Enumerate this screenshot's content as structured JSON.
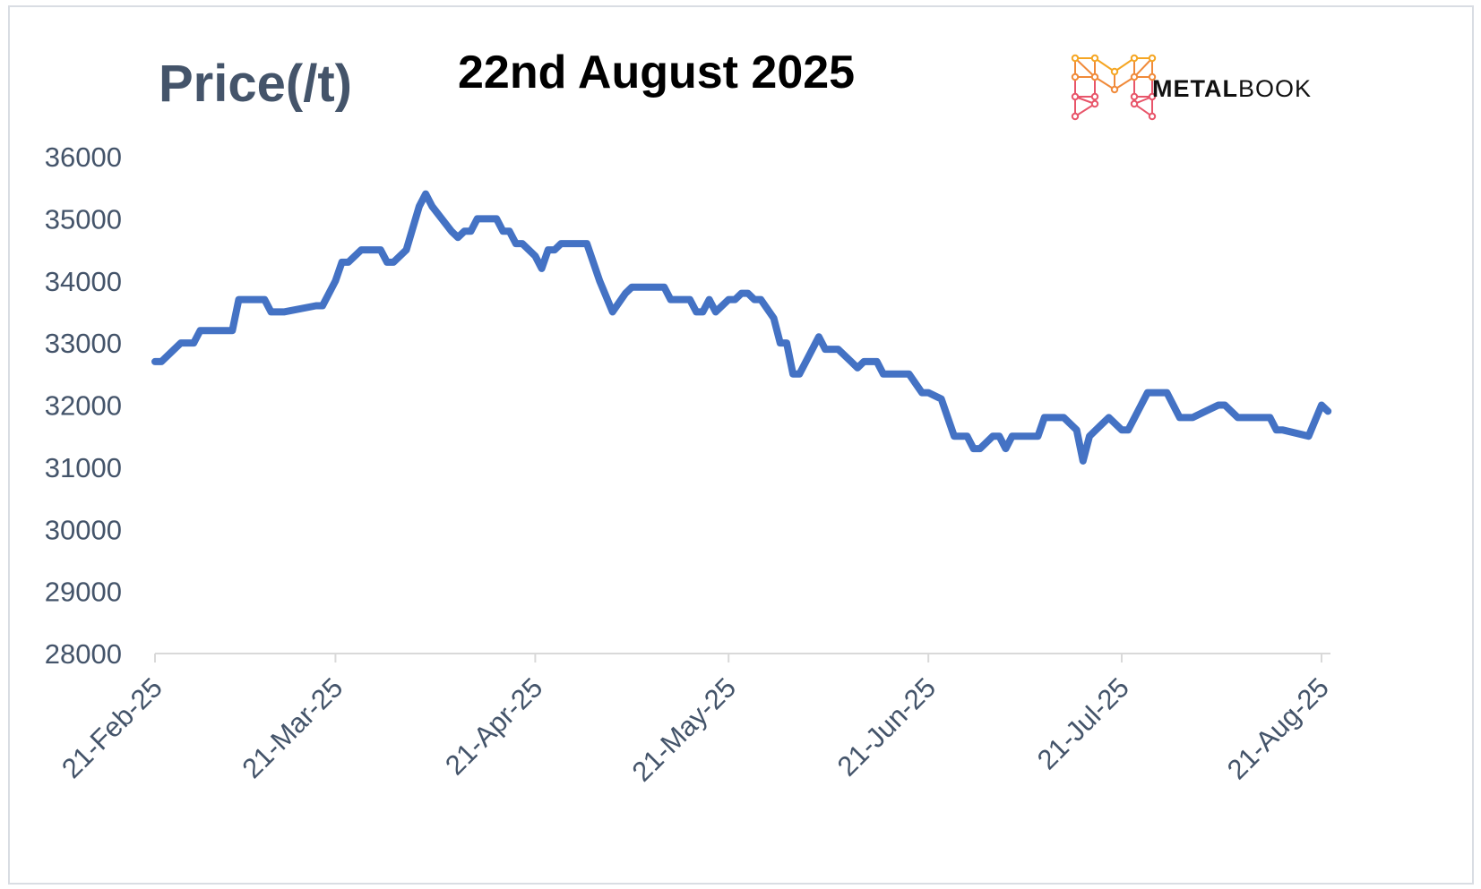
{
  "chart_data": {
    "type": "line",
    "title": "22nd August 2025",
    "ylabel": "Price(/t)",
    "xlabel": "",
    "ylim": [
      28000,
      36000
    ],
    "yticks": [
      28000,
      29000,
      30000,
      31000,
      32000,
      33000,
      34000,
      35000,
      36000
    ],
    "xlim": [
      "2025-02-21",
      "2025-08-22"
    ],
    "xticks": [
      {
        "date": "2025-02-21",
        "label": "21-Feb-25"
      },
      {
        "date": "2025-03-21",
        "label": "21-Mar-25"
      },
      {
        "date": "2025-04-21",
        "label": "21-Apr-25"
      },
      {
        "date": "2025-05-21",
        "label": "21-May-25"
      },
      {
        "date": "2025-06-21",
        "label": "21-Jun-25"
      },
      {
        "date": "2025-07-21",
        "label": "21-Jul-25"
      },
      {
        "date": "2025-08-21",
        "label": "21-Aug-25"
      }
    ],
    "grid": false,
    "legend": "none",
    "series": [
      {
        "color": "#4472c4",
        "points": [
          [
            "2025-02-21",
            32700
          ],
          [
            "2025-02-22",
            32700
          ],
          [
            "2025-02-25",
            33000
          ],
          [
            "2025-02-27",
            33000
          ],
          [
            "2025-02-28",
            33200
          ],
          [
            "2025-03-05",
            33200
          ],
          [
            "2025-03-06",
            33700
          ],
          [
            "2025-03-10",
            33700
          ],
          [
            "2025-03-11",
            33500
          ],
          [
            "2025-03-13",
            33500
          ],
          [
            "2025-03-18",
            33600
          ],
          [
            "2025-03-19",
            33600
          ],
          [
            "2025-03-21",
            34000
          ],
          [
            "2025-03-22",
            34300
          ],
          [
            "2025-03-23",
            34300
          ],
          [
            "2025-03-25",
            34500
          ],
          [
            "2025-03-28",
            34500
          ],
          [
            "2025-03-29",
            34300
          ],
          [
            "2025-03-30",
            34300
          ],
          [
            "2025-04-01",
            34500
          ],
          [
            "2025-04-03",
            35200
          ],
          [
            "2025-04-04",
            35400
          ],
          [
            "2025-04-05",
            35200
          ],
          [
            "2025-04-08",
            34800
          ],
          [
            "2025-04-09",
            34700
          ],
          [
            "2025-04-10",
            34800
          ],
          [
            "2025-04-11",
            34800
          ],
          [
            "2025-04-12",
            35000
          ],
          [
            "2025-04-15",
            35000
          ],
          [
            "2025-04-16",
            34800
          ],
          [
            "2025-04-17",
            34800
          ],
          [
            "2025-04-18",
            34600
          ],
          [
            "2025-04-19",
            34600
          ],
          [
            "2025-04-21",
            34400
          ],
          [
            "2025-04-22",
            34200
          ],
          [
            "2025-04-23",
            34500
          ],
          [
            "2025-04-24",
            34500
          ],
          [
            "2025-04-25",
            34600
          ],
          [
            "2025-04-29",
            34600
          ],
          [
            "2025-05-01",
            34000
          ],
          [
            "2025-05-03",
            33500
          ],
          [
            "2025-05-05",
            33800
          ],
          [
            "2025-05-06",
            33900
          ],
          [
            "2025-05-11",
            33900
          ],
          [
            "2025-05-12",
            33700
          ],
          [
            "2025-05-15",
            33700
          ],
          [
            "2025-05-16",
            33500
          ],
          [
            "2025-05-17",
            33500
          ],
          [
            "2025-05-18",
            33700
          ],
          [
            "2025-05-19",
            33500
          ],
          [
            "2025-05-21",
            33700
          ],
          [
            "2025-05-22",
            33700
          ],
          [
            "2025-05-23",
            33800
          ],
          [
            "2025-05-24",
            33800
          ],
          [
            "2025-05-25",
            33700
          ],
          [
            "2025-05-26",
            33700
          ],
          [
            "2025-05-28",
            33400
          ],
          [
            "2025-05-29",
            33000
          ],
          [
            "2025-05-30",
            33000
          ],
          [
            "2025-05-31",
            32500
          ],
          [
            "2025-06-01",
            32500
          ],
          [
            "2025-06-04",
            33100
          ],
          [
            "2025-06-05",
            32900
          ],
          [
            "2025-06-07",
            32900
          ],
          [
            "2025-06-09",
            32700
          ],
          [
            "2025-06-10",
            32600
          ],
          [
            "2025-06-11",
            32700
          ],
          [
            "2025-06-13",
            32700
          ],
          [
            "2025-06-14",
            32500
          ],
          [
            "2025-06-18",
            32500
          ],
          [
            "2025-06-20",
            32200
          ],
          [
            "2025-06-21",
            32200
          ],
          [
            "2025-06-23",
            32100
          ],
          [
            "2025-06-25",
            31500
          ],
          [
            "2025-06-27",
            31500
          ],
          [
            "2025-06-28",
            31300
          ],
          [
            "2025-06-29",
            31300
          ],
          [
            "2025-07-01",
            31500
          ],
          [
            "2025-07-02",
            31500
          ],
          [
            "2025-07-03",
            31300
          ],
          [
            "2025-07-04",
            31500
          ],
          [
            "2025-07-08",
            31500
          ],
          [
            "2025-07-09",
            31800
          ],
          [
            "2025-07-12",
            31800
          ],
          [
            "2025-07-14",
            31600
          ],
          [
            "2025-07-15",
            31100
          ],
          [
            "2025-07-16",
            31500
          ],
          [
            "2025-07-18",
            31700
          ],
          [
            "2025-07-19",
            31800
          ],
          [
            "2025-07-21",
            31600
          ],
          [
            "2025-07-22",
            31600
          ],
          [
            "2025-07-25",
            32200
          ],
          [
            "2025-07-28",
            32200
          ],
          [
            "2025-07-30",
            31800
          ],
          [
            "2025-08-01",
            31800
          ],
          [
            "2025-08-03",
            31900
          ],
          [
            "2025-08-05",
            32000
          ],
          [
            "2025-08-06",
            32000
          ],
          [
            "2025-08-08",
            31800
          ],
          [
            "2025-08-13",
            31800
          ],
          [
            "2025-08-14",
            31600
          ],
          [
            "2025-08-15",
            31600
          ],
          [
            "2025-08-19",
            31500
          ],
          [
            "2025-08-21",
            32000
          ],
          [
            "2025-08-22",
            31900
          ]
        ]
      }
    ]
  },
  "logo": {
    "text_bold": "METAL",
    "text_light": "BOOK",
    "icon": "metalbook-m-network-icon",
    "colors": [
      "#f5a623",
      "#f08a3a",
      "#e8556a"
    ]
  }
}
